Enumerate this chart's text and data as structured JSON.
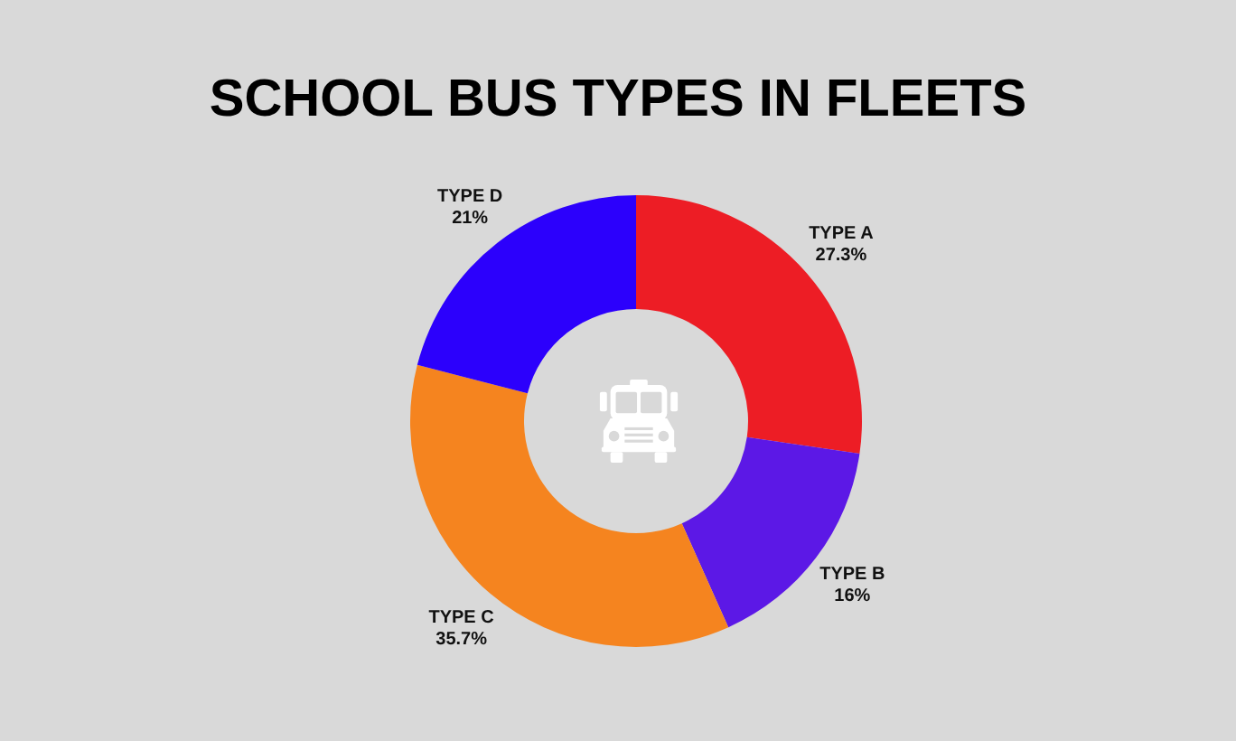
{
  "chart_data": {
    "type": "donut",
    "title": "SCHOOL BUS TYPES IN FLEETS",
    "categories": [
      "TYPE A",
      "TYPE B",
      "TYPE C",
      "TYPE D"
    ],
    "values": [
      27.3,
      16,
      35.7,
      21
    ],
    "value_labels": [
      "27.3%",
      "16%",
      "35.7%",
      "21%"
    ],
    "colors": [
      "#ed1d25",
      "#5c18e6",
      "#f5841f",
      "#2c00fc"
    ],
    "legend": false
  }
}
